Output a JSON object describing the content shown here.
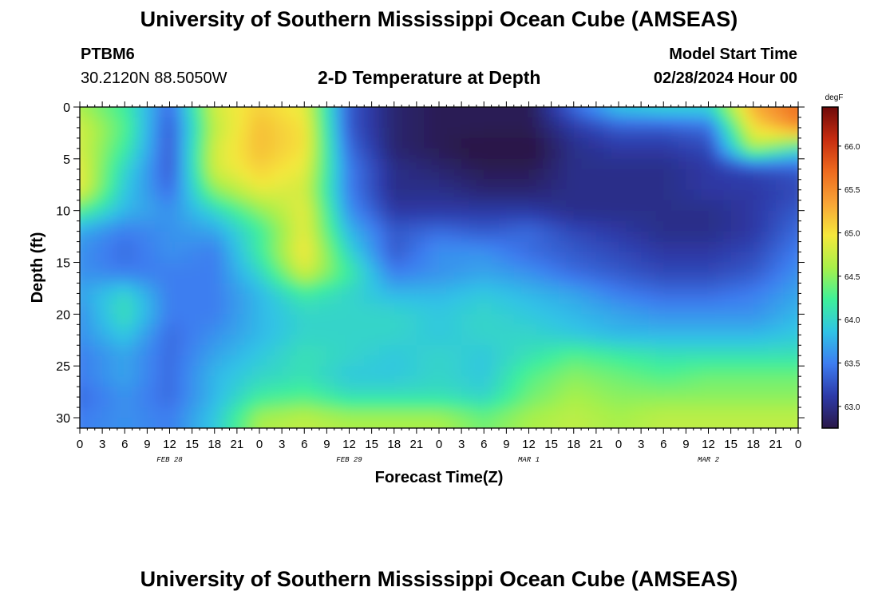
{
  "header": {
    "title": "University of Southern Mississippi Ocean Cube (AMSEAS)",
    "station_id": "PTBM6",
    "station_coords": "30.2120N  88.5050W",
    "chart_title": "2-D Temperature at Depth",
    "model_start_label": "Model Start Time",
    "model_start_value": "02/28/2024 Hour 00"
  },
  "footer": {
    "title": "University of Southern Mississippi Ocean Cube (AMSEAS)"
  },
  "chart_data": {
    "type": "heatmap",
    "title": "2-D Temperature at Depth",
    "xlabel": "Forecast Time(Z)",
    "ylabel": "Depth (ft)",
    "colorbar_unit": "degF",
    "y_ticks": [
      0,
      5,
      10,
      15,
      20,
      25,
      30
    ],
    "ylim": [
      0,
      31
    ],
    "x_ticks": [
      "0",
      "3",
      "6",
      "9",
      "12",
      "15",
      "18",
      "21",
      "0",
      "3",
      "6",
      "9",
      "12",
      "15",
      "18",
      "21",
      "0",
      "3",
      "6",
      "9",
      "12",
      "15",
      "18",
      "21",
      "0",
      "3",
      "6",
      "9",
      "12",
      "15",
      "18",
      "21",
      "0"
    ],
    "xlim_hours": [
      0,
      96
    ],
    "date_labels": [
      {
        "label": "FEB 28",
        "hour": 12
      },
      {
        "label": "FEB 29",
        "hour": 36
      },
      {
        "label": "MAR 1",
        "hour": 60
      },
      {
        "label": "MAR 2",
        "hour": 84
      }
    ],
    "colorbar_ticks": [
      "63.0",
      "63.5",
      "64.0",
      "64.5",
      "65.0",
      "65.5",
      "66.0"
    ],
    "colorbar_range": [
      62.75,
      66.45
    ],
    "colormap": [
      "#2a1848",
      "#2d3aa8",
      "#3d7cf0",
      "#30c3e6",
      "#3ef09a",
      "#a8f04a",
      "#f5e83c",
      "#f8a436",
      "#ee6a1e",
      "#c62c10",
      "#6e0a0a"
    ],
    "depth_rows_ft": [
      0,
      2,
      4,
      6,
      8,
      10,
      12,
      14,
      16,
      18,
      20,
      22,
      24,
      26,
      28,
      30
    ],
    "time_cols_hours": [
      0,
      6,
      12,
      18,
      24,
      30,
      36,
      42,
      48,
      54,
      60,
      66,
      72,
      78,
      84,
      90,
      96
    ],
    "values_degF": [
      [
        64.6,
        64.2,
        63.4,
        64.8,
        65.1,
        64.9,
        63.3,
        62.9,
        62.8,
        62.8,
        62.8,
        63.4,
        63.9,
        64.0,
        64.0,
        65.3,
        65.7
      ],
      [
        64.8,
        64.3,
        63.3,
        64.7,
        65.2,
        65.0,
        63.3,
        62.9,
        62.8,
        62.8,
        62.8,
        63.1,
        63.3,
        63.3,
        63.4,
        65.0,
        65.5
      ],
      [
        64.8,
        64.2,
        63.3,
        64.8,
        65.2,
        65.0,
        63.4,
        62.9,
        62.8,
        62.7,
        62.7,
        63.0,
        63.1,
        63.1,
        63.2,
        64.6,
        64.1
      ],
      [
        64.9,
        64.0,
        63.3,
        64.8,
        65.1,
        64.9,
        63.5,
        63.0,
        62.9,
        62.8,
        62.8,
        63.0,
        63.0,
        63.0,
        63.1,
        63.2,
        63.3
      ],
      [
        64.9,
        63.9,
        63.4,
        64.5,
        64.9,
        64.8,
        63.5,
        63.0,
        63.0,
        62.9,
        62.9,
        63.0,
        63.0,
        63.0,
        63.1,
        63.1,
        63.2
      ],
      [
        64.3,
        63.8,
        63.6,
        64.0,
        64.5,
        64.9,
        63.6,
        63.1,
        63.1,
        63.1,
        63.1,
        63.0,
        63.0,
        63.0,
        63.0,
        63.1,
        63.3
      ],
      [
        63.7,
        63.5,
        63.6,
        63.7,
        64.2,
        64.9,
        63.8,
        63.3,
        63.4,
        63.3,
        63.4,
        63.2,
        63.1,
        63.0,
        63.0,
        63.1,
        63.4
      ],
      [
        63.6,
        63.4,
        63.6,
        63.5,
        64.2,
        65.0,
        64.0,
        63.3,
        63.6,
        63.6,
        63.4,
        63.3,
        63.2,
        63.1,
        63.1,
        63.2,
        63.5
      ],
      [
        63.6,
        63.5,
        63.5,
        63.5,
        64.0,
        64.8,
        64.2,
        63.5,
        63.6,
        63.7,
        63.6,
        63.4,
        63.3,
        63.2,
        63.2,
        63.3,
        63.6
      ],
      [
        63.7,
        64.0,
        63.5,
        63.5,
        63.8,
        64.2,
        64.0,
        63.8,
        63.8,
        63.9,
        63.8,
        63.7,
        63.5,
        63.4,
        63.4,
        63.5,
        63.7
      ],
      [
        63.6,
        64.1,
        63.5,
        63.5,
        63.8,
        64.0,
        64.0,
        64.0,
        63.9,
        64.0,
        63.9,
        63.8,
        63.7,
        63.6,
        63.6,
        63.6,
        63.8
      ],
      [
        63.6,
        63.9,
        63.4,
        63.6,
        63.8,
        64.0,
        64.0,
        64.0,
        63.9,
        64.0,
        64.0,
        63.9,
        63.8,
        63.8,
        63.8,
        63.8,
        63.9
      ],
      [
        63.5,
        63.7,
        63.4,
        63.7,
        63.9,
        64.1,
        64.0,
        63.9,
        64.0,
        63.9,
        64.1,
        64.3,
        64.2,
        64.1,
        64.1,
        64.1,
        64.1
      ],
      [
        63.5,
        63.7,
        63.4,
        63.8,
        64.0,
        64.1,
        63.9,
        63.9,
        64.0,
        63.9,
        64.3,
        64.5,
        64.4,
        64.3,
        64.4,
        64.4,
        64.4
      ],
      [
        63.4,
        63.6,
        63.4,
        63.8,
        64.2,
        64.3,
        64.1,
        64.1,
        64.1,
        64.0,
        64.4,
        64.6,
        64.5,
        64.5,
        64.5,
        64.5,
        64.5
      ],
      [
        63.5,
        63.6,
        63.5,
        63.9,
        64.6,
        64.7,
        64.6,
        64.6,
        64.6,
        64.4,
        64.6,
        64.7,
        64.6,
        64.7,
        64.7,
        64.7,
        64.7
      ]
    ]
  }
}
